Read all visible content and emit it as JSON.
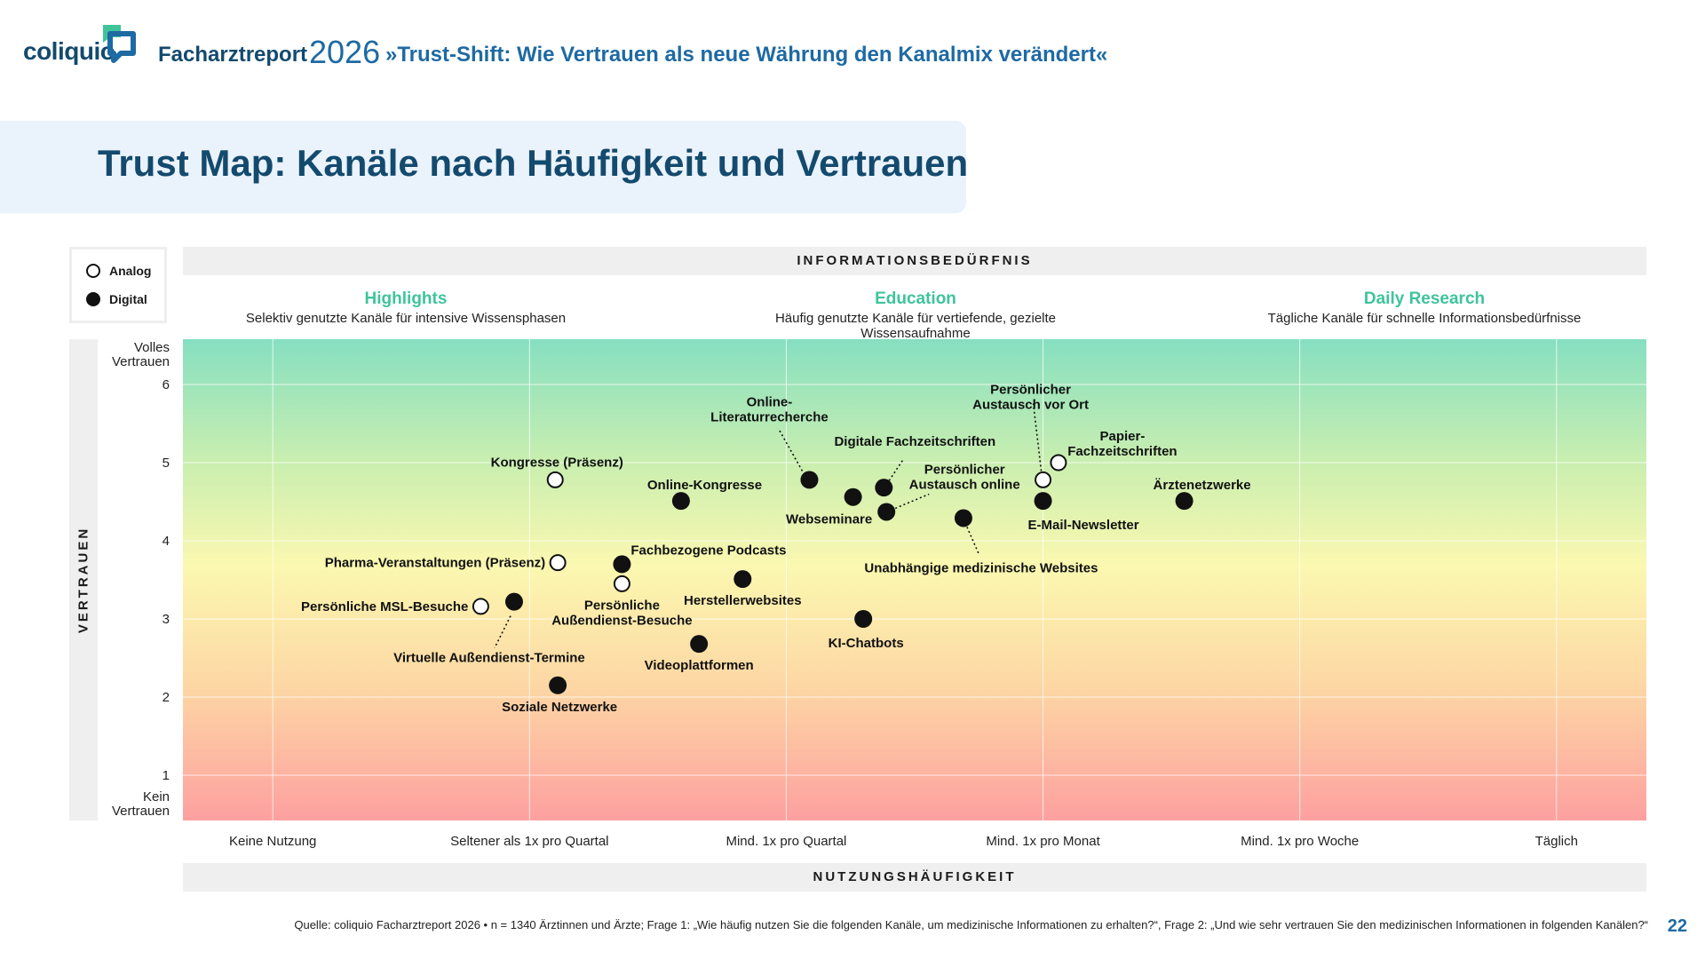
{
  "header": {
    "logo_text": "coliquio",
    "report_title": "Facharztreport",
    "report_year": "2026",
    "report_subtitle": "»Trust-Shift: Wie Vertrauen als neue Währung den Kanalmix verändert«"
  },
  "page_title": "Trust Map: Kanäle nach Häufigkeit und Vertrauen",
  "legend": {
    "analog": "Analog",
    "digital": "Digital"
  },
  "top_band": "INFORMATIONSBEDÜRFNIS",
  "bottom_band": "NUTZUNGSHÄUFIGKEIT",
  "y_band": "VERTRAUEN",
  "segments": [
    {
      "title": "Highlights",
      "desc": "Selektiv genutzte Kanäle für intensive Wissensphasen"
    },
    {
      "title": "Education",
      "desc": "Häufig genutzte Kanäle für vertiefende, gezielte Wissensaufnahme"
    },
    {
      "title": "Daily Research",
      "desc": "Tägliche Kanäle für schnelle Informationsbedürfnisse"
    }
  ],
  "colors": {
    "brand_dark": "#134a6e",
    "brand_blue": "#1e6aa3",
    "segment_green": "#3fc49a",
    "gradient_top": "#86dfc1",
    "gradient_mid": "#fbf8b0",
    "gradient_bottom": "#fda0a0"
  },
  "chart_data": {
    "type": "scatter",
    "xlabel": "NUTZUNGSHÄUFIGKEIT",
    "ylabel": "VERTRAUEN",
    "x_ticks": [
      "Keine Nutzung",
      "Seltener als 1x pro Quartal",
      "Mind. 1x pro Quartal",
      "Mind. 1x pro Monat",
      "Mind. 1x pro Woche",
      "Täglich"
    ],
    "y_ticks": [
      1,
      2,
      3,
      4,
      5,
      6
    ],
    "y_top_label": [
      "Volles",
      "Vertrauen"
    ],
    "y_bottom_label": [
      "Kein",
      "Vertrauen"
    ],
    "xlim": [
      0.65,
      6.35
    ],
    "ylim": [
      0.42,
      6.58
    ],
    "grid": true,
    "legend": "top-left",
    "points": [
      {
        "name": "Kongresse (Präsenz)",
        "x": 2.1,
        "y": 4.78,
        "kind": "analog"
      },
      {
        "name": "Pharma-Veranstaltungen (Präsenz)",
        "x": 2.11,
        "y": 3.72,
        "kind": "analog"
      },
      {
        "name": "Persönliche MSL-Besuche",
        "x": 1.81,
        "y": 3.16,
        "kind": "analog"
      },
      {
        "name": "Virtuelle Außendienst-Termine",
        "x": 1.94,
        "y": 3.22,
        "kind": "digital"
      },
      {
        "name": "Soziale Netzwerke",
        "x": 2.11,
        "y": 2.15,
        "kind": "digital"
      },
      {
        "name": "Persönliche Außendienst-Besuche",
        "x": 2.36,
        "y": 3.45,
        "kind": "analog"
      },
      {
        "name": "Fachbezogene Podcasts",
        "x": 2.36,
        "y": 3.7,
        "kind": "digital"
      },
      {
        "name": "Online-Kongresse",
        "x": 2.59,
        "y": 4.51,
        "kind": "digital"
      },
      {
        "name": "Videoplattformen",
        "x": 2.66,
        "y": 2.68,
        "kind": "digital"
      },
      {
        "name": "Herstellerwebsites",
        "x": 2.83,
        "y": 3.51,
        "kind": "digital"
      },
      {
        "name": "Online-Literaturrecherche",
        "x": 3.09,
        "y": 4.78,
        "kind": "digital"
      },
      {
        "name": "Webseminare",
        "x": 3.26,
        "y": 4.56,
        "kind": "digital"
      },
      {
        "name": "Digitale Fachzeitschriften",
        "x": 3.38,
        "y": 4.68,
        "kind": "digital"
      },
      {
        "name": "Persönlicher Austausch online",
        "x": 3.39,
        "y": 4.37,
        "kind": "digital"
      },
      {
        "name": "KI-Chatbots",
        "x": 3.3,
        "y": 3.0,
        "kind": "digital"
      },
      {
        "name": "Unabhängige medizinische Websites",
        "x": 3.69,
        "y": 4.29,
        "kind": "digital"
      },
      {
        "name": "Persönlicher Austausch vor Ort",
        "x": 4.0,
        "y": 4.78,
        "kind": "analog"
      },
      {
        "name": "Papier-Fachzeitschriften",
        "x": 4.06,
        "y": 5.0,
        "kind": "analog"
      },
      {
        "name": "E-Mail-Newsletter",
        "x": 4.0,
        "y": 4.51,
        "kind": "digital"
      },
      {
        "name": "Ärztenetzwerke",
        "x": 4.55,
        "y": 4.51,
        "kind": "digital"
      }
    ]
  },
  "footer": "Quelle: coliquio Facharztreport 2026 • n = 1340 Ärztinnen und Ärzte; Frage 1: „Wie häufig nutzen Sie die folgenden Kanäle, um medizinische Informationen zu erhalten?“, Frage 2: „Und wie sehr vertrauen Sie den medizinischen Informationen in folgenden Kanälen?“",
  "page_number": "22"
}
